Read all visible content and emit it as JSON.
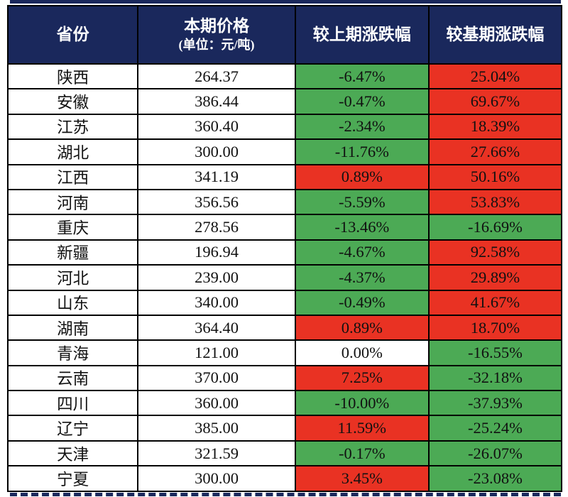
{
  "colors": {
    "navy": "#1a285c",
    "green": "#4caa55",
    "red": "#e93223",
    "white": "#ffffff",
    "grid": "#000000"
  },
  "chart_data": {
    "type": "table",
    "columns": {
      "province": "省份",
      "price_line1": "本期价格",
      "price_line2": "(单位：元/吨)",
      "chg_prev": "较上期涨跌幅",
      "chg_base": "较基期涨跌幅"
    },
    "rows": [
      {
        "province": "陕西",
        "price": "264.37",
        "chg_prev": "-6.47%",
        "prev_color": "green",
        "chg_base": "25.04%",
        "base_color": "red"
      },
      {
        "province": "安徽",
        "price": "386.44",
        "chg_prev": "-0.47%",
        "prev_color": "green",
        "chg_base": "69.67%",
        "base_color": "red"
      },
      {
        "province": "江苏",
        "price": "360.40",
        "chg_prev": "-2.34%",
        "prev_color": "green",
        "chg_base": "18.39%",
        "base_color": "red"
      },
      {
        "province": "湖北",
        "price": "300.00",
        "chg_prev": "-11.76%",
        "prev_color": "green",
        "chg_base": "27.66%",
        "base_color": "red"
      },
      {
        "province": "江西",
        "price": "341.19",
        "chg_prev": "0.89%",
        "prev_color": "red",
        "chg_base": "50.16%",
        "base_color": "red"
      },
      {
        "province": "河南",
        "price": "356.56",
        "chg_prev": "-5.59%",
        "prev_color": "green",
        "chg_base": "53.83%",
        "base_color": "red"
      },
      {
        "province": "重庆",
        "price": "278.56",
        "chg_prev": "-13.46%",
        "prev_color": "green",
        "chg_base": "-16.69%",
        "base_color": "green"
      },
      {
        "province": "新疆",
        "price": "196.94",
        "chg_prev": "-4.67%",
        "prev_color": "green",
        "chg_base": "92.58%",
        "base_color": "red"
      },
      {
        "province": "河北",
        "price": "239.00",
        "chg_prev": "-4.37%",
        "prev_color": "green",
        "chg_base": "29.89%",
        "base_color": "red"
      },
      {
        "province": "山东",
        "price": "340.00",
        "chg_prev": "-0.49%",
        "prev_color": "green",
        "chg_base": "41.67%",
        "base_color": "red"
      },
      {
        "province": "湖南",
        "price": "364.40",
        "chg_prev": "0.89%",
        "prev_color": "red",
        "chg_base": "18.70%",
        "base_color": "red"
      },
      {
        "province": "青海",
        "price": "121.00",
        "chg_prev": "0.00%",
        "prev_color": "white",
        "chg_base": "-16.55%",
        "base_color": "green"
      },
      {
        "province": "云南",
        "price": "370.00",
        "chg_prev": "7.25%",
        "prev_color": "red",
        "chg_base": "-32.18%",
        "base_color": "green"
      },
      {
        "province": "四川",
        "price": "360.00",
        "chg_prev": "-10.00%",
        "prev_color": "green",
        "chg_base": "-37.93%",
        "base_color": "green"
      },
      {
        "province": "辽宁",
        "price": "385.00",
        "chg_prev": "11.59%",
        "prev_color": "red",
        "chg_base": "-25.24%",
        "base_color": "green"
      },
      {
        "province": "天津",
        "price": "321.59",
        "chg_prev": "-0.17%",
        "prev_color": "green",
        "chg_base": "-26.07%",
        "base_color": "green"
      },
      {
        "province": "宁夏",
        "price": "300.00",
        "chg_prev": "3.45%",
        "prev_color": "red",
        "chg_base": "-23.08%",
        "base_color": "green"
      }
    ]
  }
}
